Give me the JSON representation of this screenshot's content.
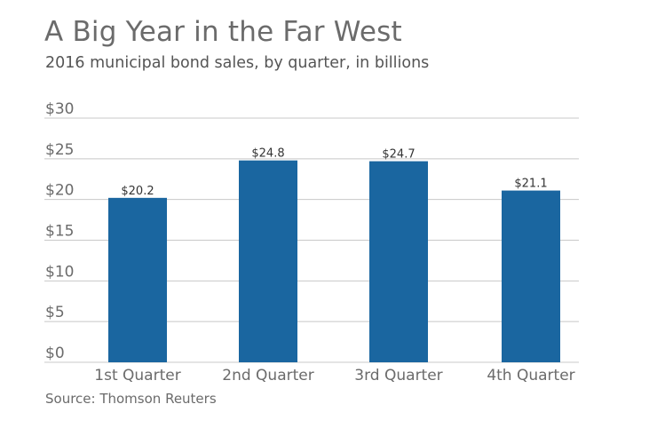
{
  "title": "A Big Year in the Far West",
  "subtitle": "2016 municipal bond sales, by quarter, in billions",
  "source": "Source: Thomson Reuters",
  "colors": {
    "bar": "#1a66a0",
    "grid": "#c8c8c8",
    "axis_text": "#6b6b6b",
    "label_text": "#333333"
  },
  "chart_data": {
    "type": "bar",
    "categories": [
      "1st Quarter",
      "2nd Quarter",
      "3rd Quarter",
      "4th Quarter"
    ],
    "values": [
      20.2,
      24.8,
      24.7,
      21.1
    ],
    "data_labels": [
      "$20.2",
      "$24.8",
      "$24.7",
      "$21.1"
    ],
    "title": "A Big Year in the Far West",
    "subtitle": "2016 municipal bond sales, by quarter, in billions",
    "xlabel": "",
    "ylabel": "",
    "ylim": [
      0,
      30
    ],
    "yticks": [
      0,
      5,
      10,
      15,
      20,
      25,
      30
    ],
    "ytick_labels": [
      "$0",
      "$5",
      "$10",
      "$15",
      "$20",
      "$25",
      "$30"
    ],
    "grid": true,
    "legend": "none"
  }
}
